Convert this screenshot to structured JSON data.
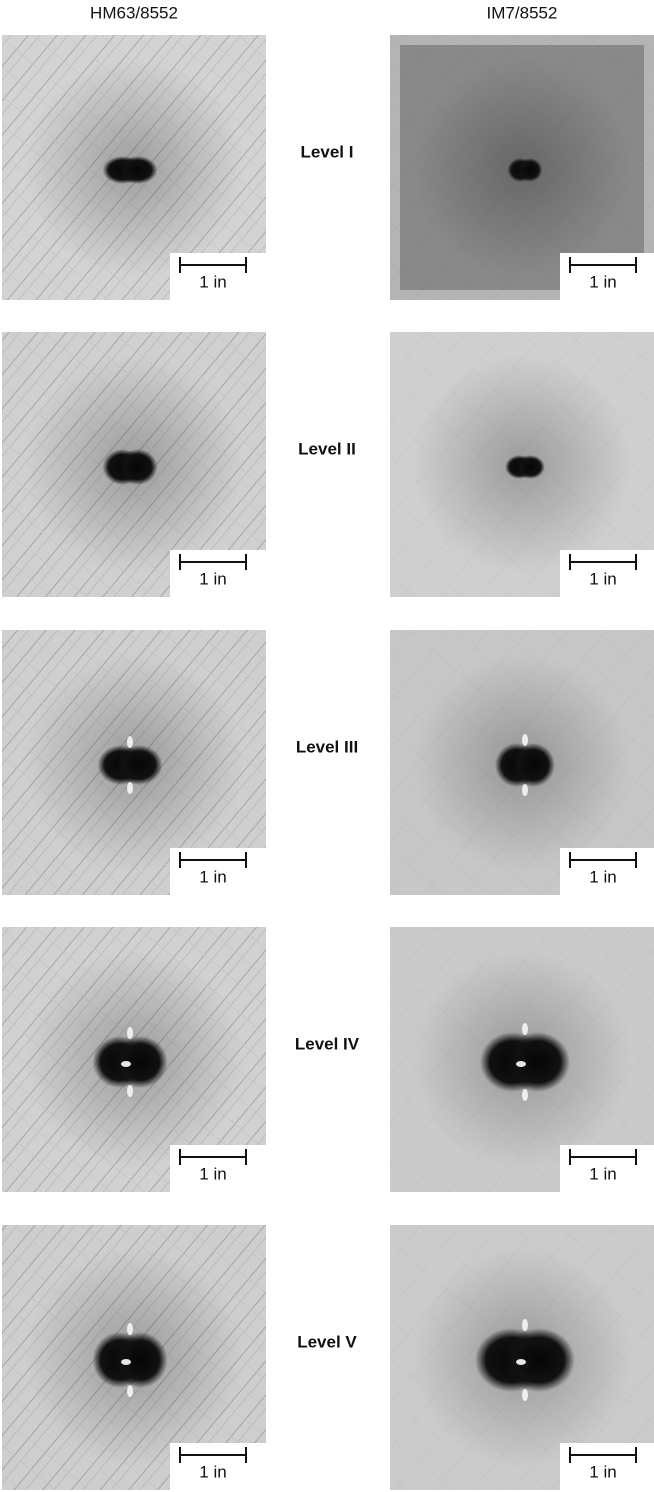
{
  "columns": [
    "HM63/8552",
    "IM7/8552"
  ],
  "rows": [
    {
      "label": "Level I",
      "panels": [
        {
          "scale_label": "1 in"
        },
        {
          "scale_label": "1 in"
        }
      ]
    },
    {
      "label": "Level II",
      "panels": [
        {
          "scale_label": "1 in"
        },
        {
          "scale_label": "1 in"
        }
      ]
    },
    {
      "label": "Level III",
      "panels": [
        {
          "scale_label": "1 in"
        },
        {
          "scale_label": "1 in"
        }
      ]
    },
    {
      "label": "Level IV",
      "panels": [
        {
          "scale_label": "1 in"
        },
        {
          "scale_label": "1 in"
        }
      ]
    },
    {
      "label": "Level V",
      "panels": [
        {
          "scale_label": "1 in"
        },
        {
          "scale_label": "1 in"
        }
      ]
    }
  ]
}
